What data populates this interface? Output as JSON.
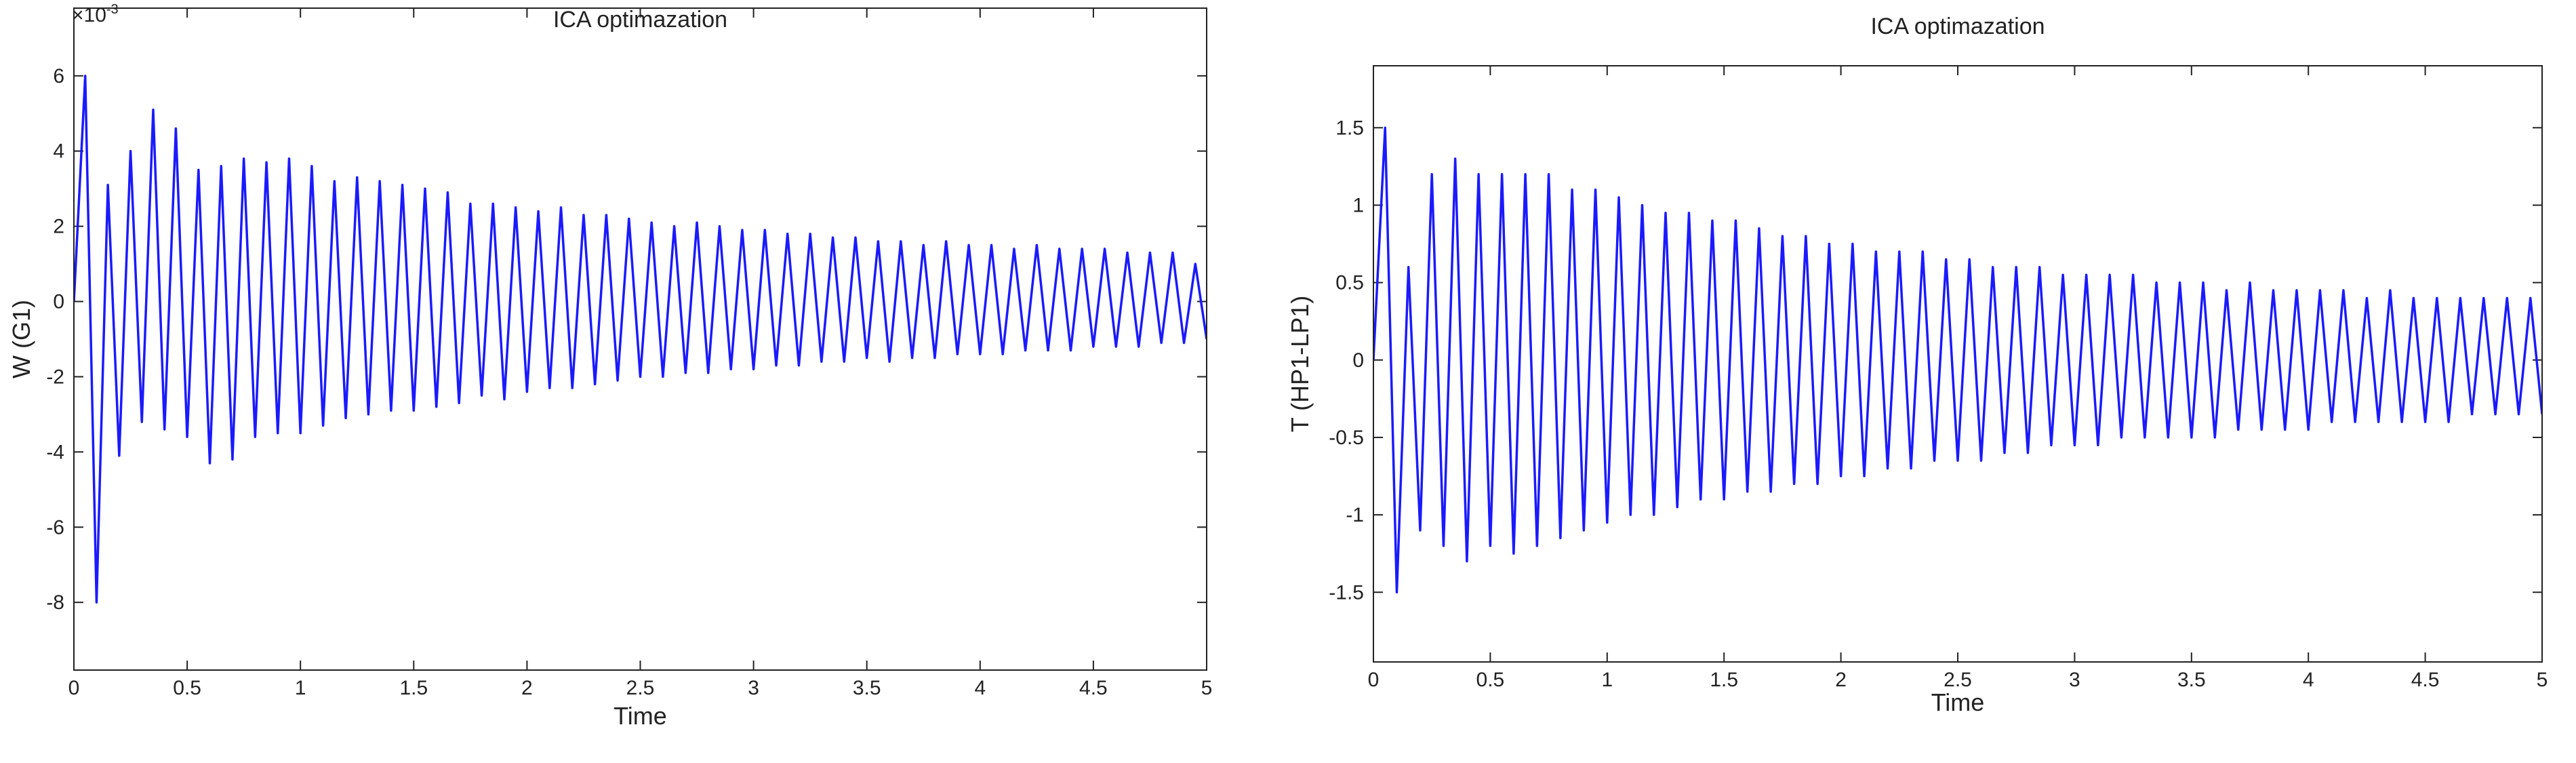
{
  "chart_data": [
    {
      "type": "line",
      "title": "ICA optimazation",
      "xlabel": "Time",
      "ylabel": "W (G1)",
      "y_exponent_base": "×10",
      "y_exponent": "-3",
      "xlim": [
        0,
        5
      ],
      "xticks": [
        0,
        0.5,
        1,
        1.5,
        2,
        2.5,
        3,
        3.5,
        4,
        4.5,
        5
      ],
      "ylim": [
        -9.8,
        7.8
      ],
      "yticks": [
        -8,
        -6,
        -4,
        -2,
        0,
        2,
        4,
        6
      ],
      "x": [
        0,
        0.05,
        0.1,
        0.15,
        0.2,
        0.25,
        0.3,
        0.35,
        0.4,
        0.45,
        0.5,
        0.55,
        0.6,
        0.65,
        0.7,
        0.75,
        0.8,
        0.85,
        0.9,
        0.95,
        1,
        1.05,
        1.1,
        1.15,
        1.2,
        1.25,
        1.3,
        1.35,
        1.4,
        1.45,
        1.5,
        1.55,
        1.6,
        1.65,
        1.7,
        1.75,
        1.8,
        1.85,
        1.9,
        1.95,
        2,
        2.05,
        2.1,
        2.15,
        2.2,
        2.25,
        2.3,
        2.35,
        2.4,
        2.45,
        2.5,
        2.55,
        2.6,
        2.65,
        2.7,
        2.75,
        2.8,
        2.85,
        2.9,
        2.95,
        3,
        3.05,
        3.1,
        3.15,
        3.2,
        3.25,
        3.3,
        3.35,
        3.4,
        3.45,
        3.5,
        3.55,
        3.6,
        3.65,
        3.7,
        3.75,
        3.8,
        3.85,
        3.9,
        3.95,
        4,
        4.05,
        4.1,
        4.15,
        4.2,
        4.25,
        4.3,
        4.35,
        4.4,
        4.45,
        4.5,
        4.55,
        4.6,
        4.65,
        4.7,
        4.75,
        4.8,
        4.85,
        4.9,
        4.95,
        5
      ],
      "series": [
        {
          "color": "#1a1aff",
          "values": [
            0,
            6,
            -8,
            3.1,
            -4.1,
            4,
            -3.2,
            5.1,
            -3.4,
            4.6,
            -3.6,
            3.5,
            -4.3,
            3.6,
            -4.2,
            3.8,
            -3.6,
            3.7,
            -3.5,
            3.8,
            -3.5,
            3.6,
            -3.3,
            3.2,
            -3.1,
            3.3,
            -3.0,
            3.2,
            -2.9,
            3.1,
            -2.9,
            3.0,
            -2.8,
            2.9,
            -2.7,
            2.6,
            -2.5,
            2.6,
            -2.6,
            2.5,
            -2.4,
            2.4,
            -2.3,
            2.5,
            -2.3,
            2.3,
            -2.2,
            2.3,
            -2.1,
            2.2,
            -2.0,
            2.1,
            -2.0,
            2.0,
            -1.9,
            2.1,
            -1.9,
            2.0,
            -1.8,
            1.9,
            -1.8,
            1.9,
            -1.7,
            1.8,
            -1.7,
            1.8,
            -1.6,
            1.7,
            -1.6,
            1.7,
            -1.5,
            1.6,
            -1.6,
            1.6,
            -1.5,
            1.5,
            -1.5,
            1.6,
            -1.4,
            1.5,
            -1.4,
            1.5,
            -1.4,
            1.4,
            -1.3,
            1.5,
            -1.3,
            1.4,
            -1.3,
            1.4,
            -1.2,
            1.4,
            -1.2,
            1.3,
            -1.2,
            1.3,
            -1.1,
            1.3,
            -1.1,
            1.0,
            -1.0
          ]
        }
      ]
    },
    {
      "type": "line",
      "title": "ICA optimazation",
      "xlabel": "Time",
      "ylabel": "T (HP1-LP1)",
      "xlim": [
        0,
        5
      ],
      "xticks": [
        0,
        0.5,
        1,
        1.5,
        2,
        2.5,
        3,
        3.5,
        4,
        4.5,
        5
      ],
      "ylim": [
        -1.95,
        1.9
      ],
      "yticks": [
        -1.5,
        -1,
        -0.5,
        0,
        0.5,
        1,
        1.5
      ],
      "x": [
        0,
        0.05,
        0.1,
        0.15,
        0.2,
        0.25,
        0.3,
        0.35,
        0.4,
        0.45,
        0.5,
        0.55,
        0.6,
        0.65,
        0.7,
        0.75,
        0.8,
        0.85,
        0.9,
        0.95,
        1,
        1.05,
        1.1,
        1.15,
        1.2,
        1.25,
        1.3,
        1.35,
        1.4,
        1.45,
        1.5,
        1.55,
        1.6,
        1.65,
        1.7,
        1.75,
        1.8,
        1.85,
        1.9,
        1.95,
        2,
        2.05,
        2.1,
        2.15,
        2.2,
        2.25,
        2.3,
        2.35,
        2.4,
        2.45,
        2.5,
        2.55,
        2.6,
        2.65,
        2.7,
        2.75,
        2.8,
        2.85,
        2.9,
        2.95,
        3,
        3.05,
        3.1,
        3.15,
        3.2,
        3.25,
        3.3,
        3.35,
        3.4,
        3.45,
        3.5,
        3.55,
        3.6,
        3.65,
        3.7,
        3.75,
        3.8,
        3.85,
        3.9,
        3.95,
        4,
        4.05,
        4.1,
        4.15,
        4.2,
        4.25,
        4.3,
        4.35,
        4.4,
        4.45,
        4.5,
        4.55,
        4.6,
        4.65,
        4.7,
        4.75,
        4.8,
        4.85,
        4.9,
        4.95,
        5
      ],
      "series": [
        {
          "color": "#1a1aff",
          "values": [
            0,
            1.5,
            -1.5,
            0.6,
            -1.1,
            1.2,
            -1.2,
            1.3,
            -1.3,
            1.2,
            -1.2,
            1.2,
            -1.25,
            1.2,
            -1.2,
            1.2,
            -1.15,
            1.1,
            -1.1,
            1.1,
            -1.05,
            1.05,
            -1.0,
            1.0,
            -1.0,
            0.95,
            -0.95,
            0.95,
            -0.9,
            0.9,
            -0.9,
            0.9,
            -0.85,
            0.85,
            -0.85,
            0.8,
            -0.8,
            0.8,
            -0.8,
            0.75,
            -0.75,
            0.75,
            -0.75,
            0.7,
            -0.7,
            0.7,
            -0.7,
            0.7,
            -0.65,
            0.65,
            -0.65,
            0.65,
            -0.65,
            0.6,
            -0.6,
            0.6,
            -0.6,
            0.6,
            -0.55,
            0.55,
            -0.55,
            0.55,
            -0.55,
            0.55,
            -0.5,
            0.55,
            -0.5,
            0.5,
            -0.5,
            0.5,
            -0.5,
            0.5,
            -0.5,
            0.45,
            -0.45,
            0.5,
            -0.45,
            0.45,
            -0.45,
            0.45,
            -0.45,
            0.45,
            -0.4,
            0.45,
            -0.4,
            0.4,
            -0.4,
            0.45,
            -0.4,
            0.4,
            -0.4,
            0.4,
            -0.4,
            0.4,
            -0.35,
            0.4,
            -0.35,
            0.4,
            -0.35,
            0.4,
            -0.35
          ]
        }
      ]
    }
  ]
}
